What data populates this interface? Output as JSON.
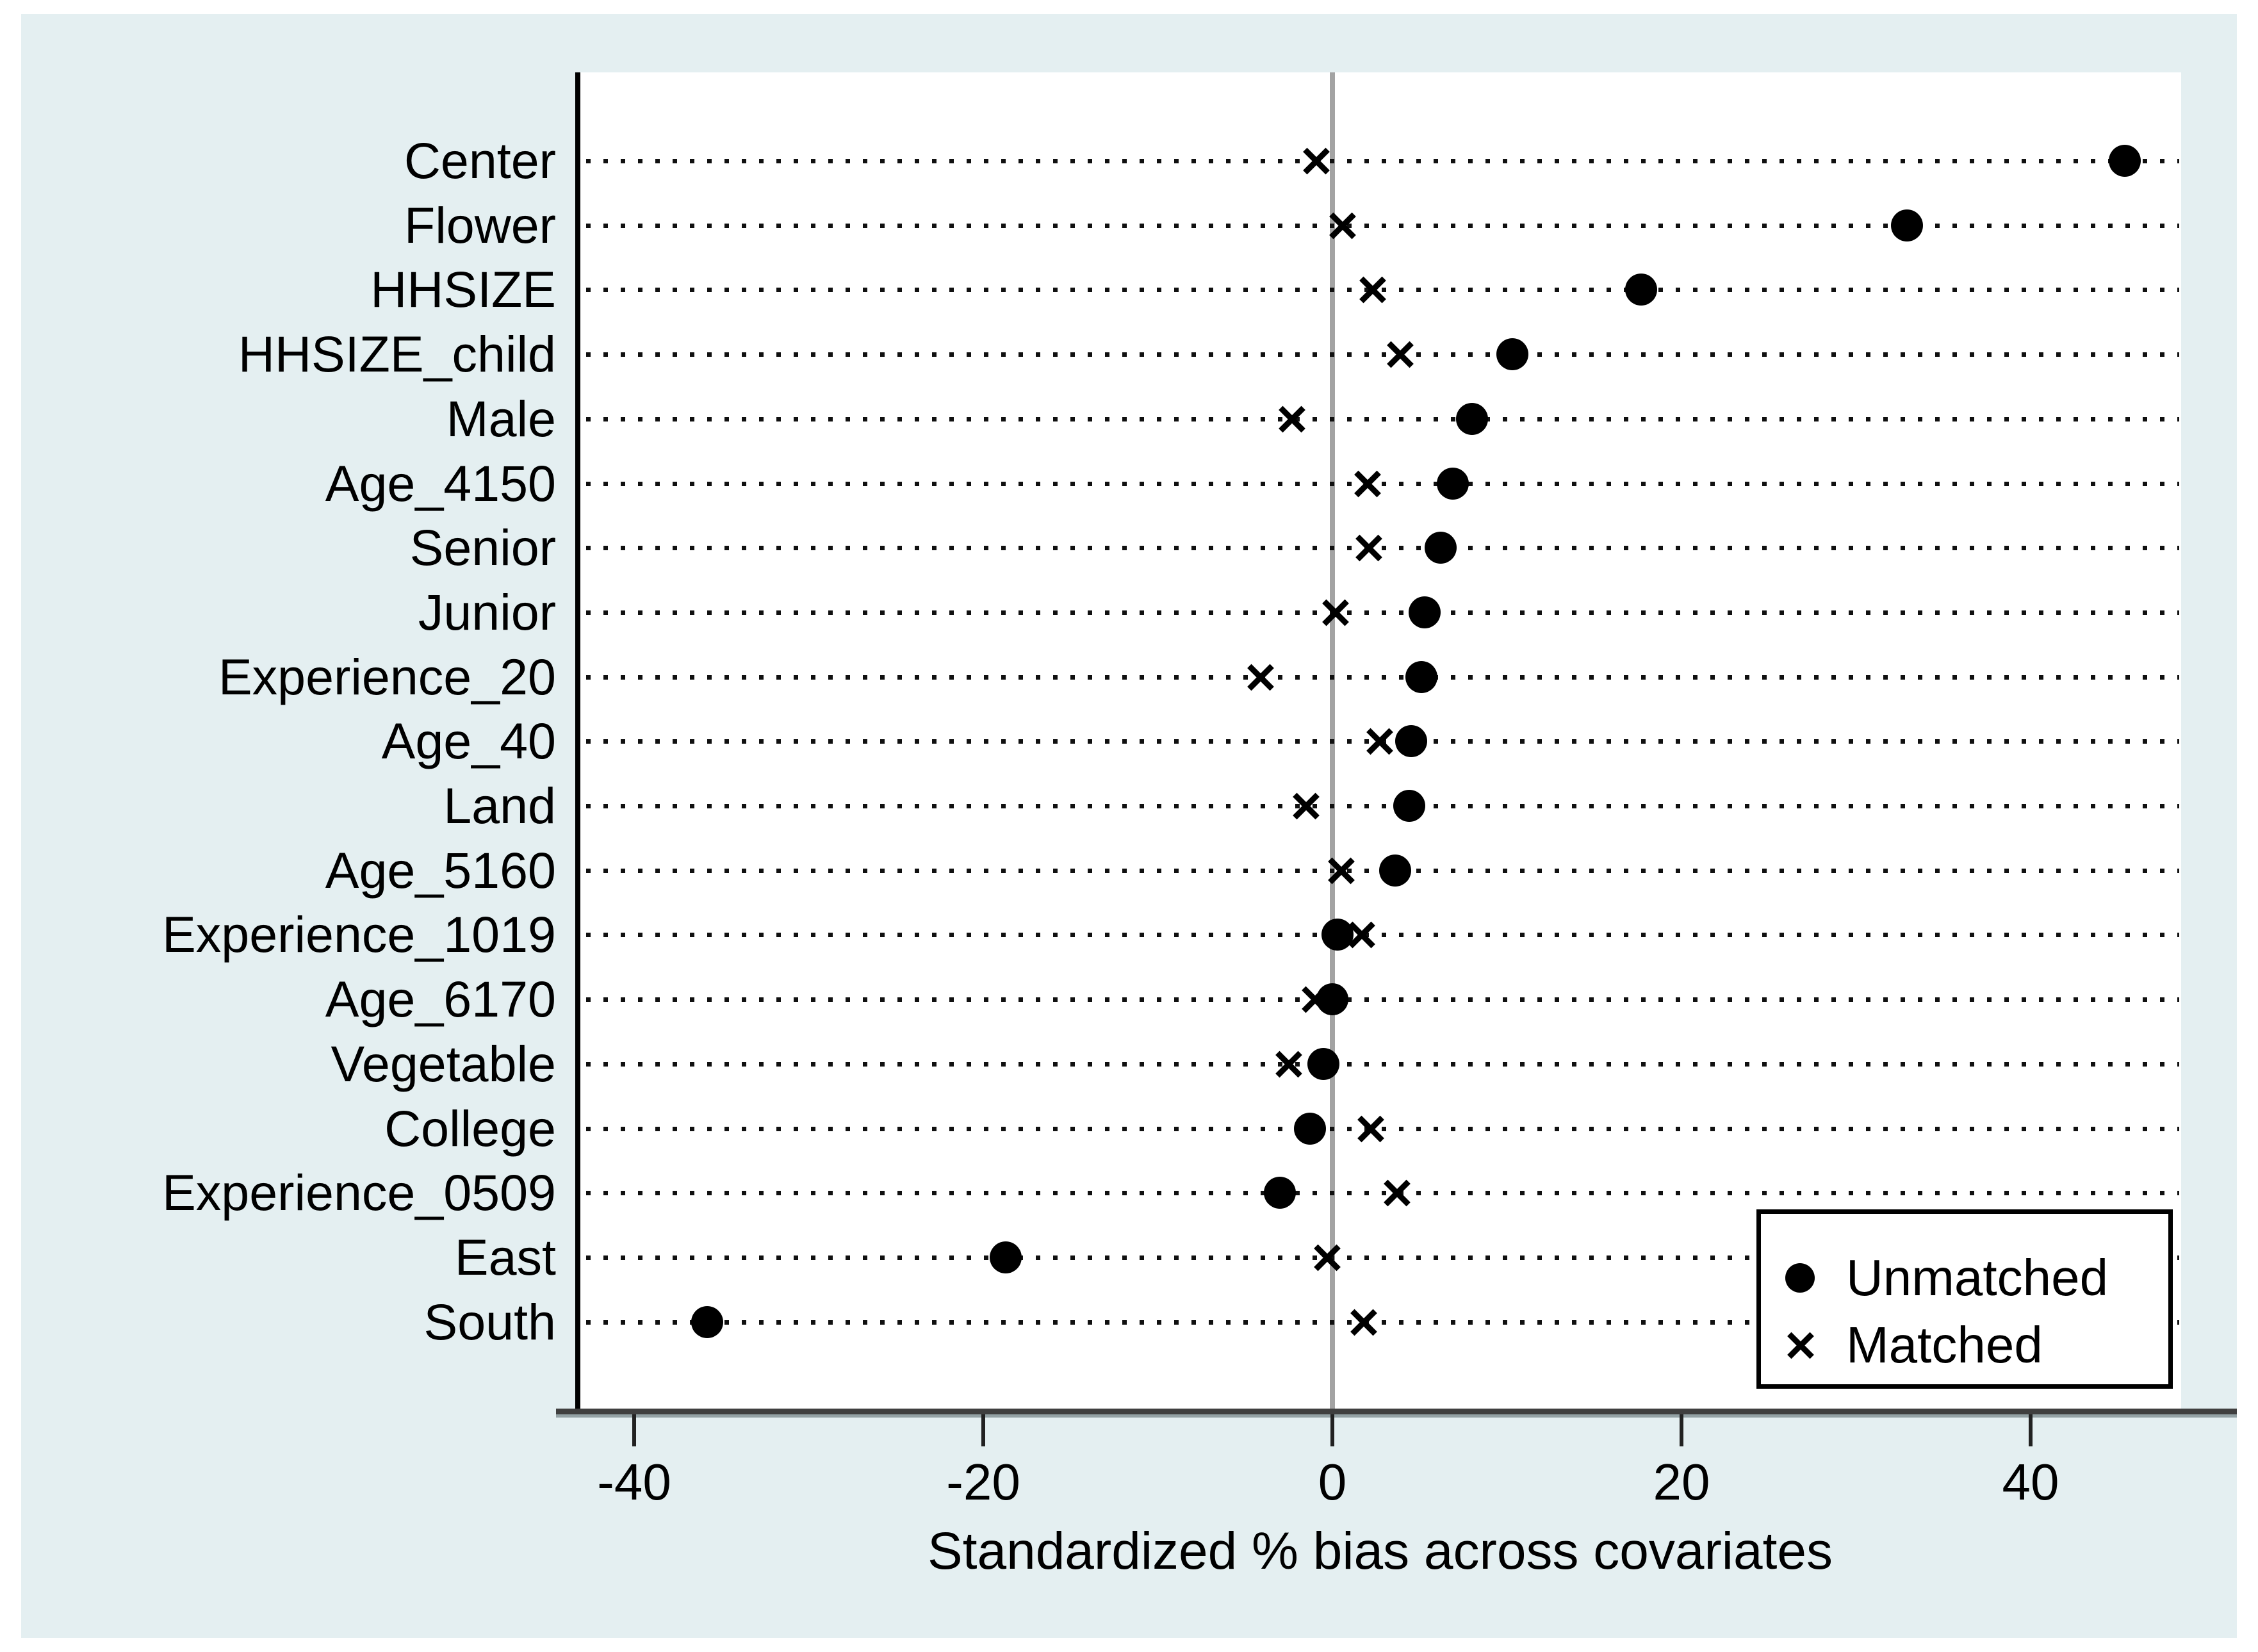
{
  "chart_data": {
    "type": "scatter",
    "title": "",
    "xlabel": "Standardized % bias across covariates",
    "categories": [
      "Center",
      "Flower",
      "HHSIZE",
      "HHSIZE_child",
      "Male",
      "Age_4150",
      "Senior",
      "Junior",
      "Experience_20",
      "Age_40",
      "Land",
      "Age_5160",
      "Experience_1019",
      "Age_6170",
      "Vegetable",
      "College",
      "Experience_0509",
      "East",
      "South"
    ],
    "series": [
      {
        "name": "Unmatched",
        "marker": "filled-circle",
        "values": [
          45.4,
          32.9,
          17.7,
          10.3,
          8.0,
          6.9,
          6.2,
          5.3,
          5.1,
          4.5,
          4.4,
          3.6,
          0.3,
          0.0,
          -0.5,
          -1.3,
          -3.0,
          -18.7,
          -35.8
        ]
      },
      {
        "name": "Matched",
        "marker": "x",
        "values": [
          -0.9,
          0.6,
          2.3,
          3.9,
          -2.3,
          2.0,
          2.1,
          0.2,
          -4.1,
          2.7,
          -1.5,
          0.5,
          1.7,
          -1.0,
          -2.5,
          2.2,
          3.7,
          -0.3,
          1.8
        ]
      }
    ],
    "xticks": [
      "-40",
      "-20",
      "0",
      "20",
      "40"
    ],
    "xtick_values": [
      -40,
      -20,
      0,
      20,
      40
    ],
    "xlim": [
      -43.2,
      48.6
    ],
    "zero_reference_line": 0,
    "grid": "horizontal-dotted",
    "legend_position": "inside-bottom-right"
  },
  "legend": {
    "items": [
      {
        "label": "Unmatched",
        "marker": "filled-circle"
      },
      {
        "label": "Matched",
        "marker": "x"
      }
    ]
  },
  "colors": {
    "background": "#e4eff1",
    "plot_background": "#ffffff",
    "marker": "#000000",
    "zero_line": "#a3a3a3",
    "y_axis_line": "#000000",
    "x_axis_line": "#3f3f3f",
    "text": "#000000"
  }
}
